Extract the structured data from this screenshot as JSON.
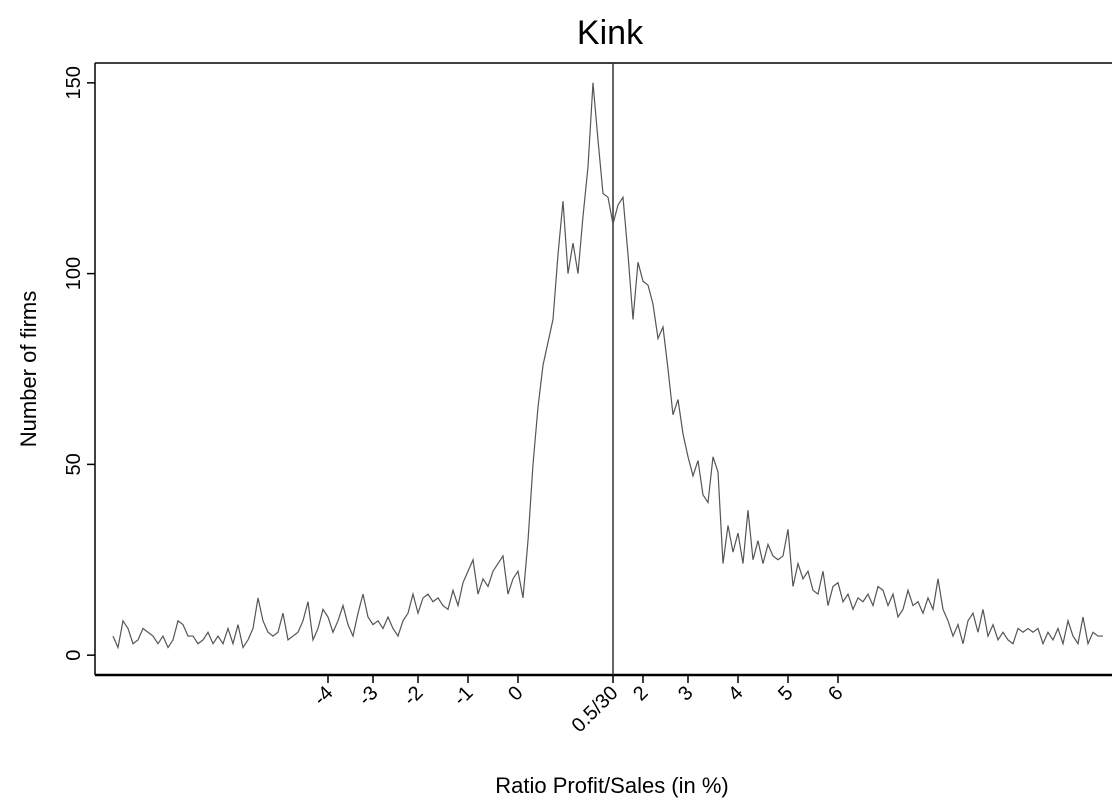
{
  "chart_data": {
    "type": "line",
    "title": "Kink",
    "x_label": "Ratio Profit/Sales (in %)",
    "y_label": "Number of firms",
    "categories": [
      null,
      null,
      null,
      null,
      null,
      null,
      null,
      null,
      null,
      null,
      null,
      null,
      null,
      null,
      null,
      null,
      null,
      null,
      null,
      null,
      null,
      null,
      null,
      null,
      null,
      null,
      null,
      null,
      null,
      null,
      null,
      null,
      null,
      null,
      null,
      null,
      null,
      null,
      null,
      null,
      null,
      null,
      null,
      "-4",
      null,
      null,
      null,
      null,
      null,
      null,
      null,
      null,
      "-3",
      null,
      null,
      null,
      null,
      null,
      null,
      null,
      null,
      "-2",
      null,
      null,
      null,
      null,
      null,
      null,
      null,
      null,
      null,
      "-1",
      null,
      null,
      null,
      null,
      null,
      null,
      null,
      null,
      null,
      "0",
      null,
      null,
      null,
      null,
      null,
      null,
      null,
      null,
      null,
      null,
      null,
      null,
      null,
      null,
      null,
      null,
      null,
      null,
      "0.5/30",
      null,
      null,
      null,
      null,
      null,
      "2",
      null,
      null,
      null,
      null,
      null,
      null,
      null,
      null,
      "3",
      null,
      null,
      null,
      null,
      null,
      null,
      null,
      null,
      null,
      "4",
      null,
      null,
      null,
      null,
      null,
      null,
      null,
      null,
      null,
      "5",
      null,
      null,
      null,
      null,
      null,
      null,
      null,
      null,
      null,
      "6",
      null,
      null,
      null,
      null,
      null,
      null,
      null,
      null,
      null,
      null,
      null,
      null,
      null,
      null,
      null,
      null,
      null,
      null,
      null,
      null,
      null,
      null,
      null,
      null,
      null,
      null,
      null,
      null,
      null,
      null,
      null,
      null,
      null,
      null,
      null,
      null,
      null,
      null,
      null,
      null,
      null,
      null,
      null,
      null,
      null,
      null,
      null,
      null,
      null,
      null,
      null,
      null,
      null
    ],
    "values": [
      5,
      2,
      9,
      7,
      3,
      4,
      7,
      6,
      5,
      3,
      5,
      2,
      4,
      9,
      8,
      5,
      5,
      3,
      4,
      6,
      3,
      5,
      3,
      7,
      3,
      8,
      2,
      4,
      7,
      15,
      9,
      6,
      5,
      6,
      11,
      4,
      5,
      6,
      9,
      14,
      4,
      7,
      12,
      10,
      6,
      9,
      13,
      8,
      5,
      11,
      16,
      10,
      8,
      9,
      7,
      10,
      7,
      5,
      9,
      11,
      16,
      11,
      15,
      16,
      14,
      15,
      13,
      12,
      17,
      13,
      19,
      22,
      25,
      16,
      20,
      18,
      22,
      24,
      26,
      16,
      20,
      22,
      15,
      30,
      50,
      65,
      76,
      82,
      88,
      105,
      119,
      100,
      108,
      100,
      115,
      128,
      150,
      135,
      121,
      120,
      113,
      118,
      120,
      105,
      88,
      103,
      98,
      97,
      92,
      83,
      86,
      75,
      63,
      67,
      58,
      52,
      47,
      51,
      42,
      40,
      52,
      48,
      24,
      34,
      27,
      32,
      24,
      38,
      25,
      30,
      24,
      29,
      26,
      25,
      26,
      33,
      18,
      24,
      20,
      22,
      17,
      16,
      22,
      13,
      18,
      19,
      14,
      16,
      12,
      15,
      14,
      16,
      13,
      18,
      17,
      13,
      16,
      10,
      12,
      17,
      13,
      14,
      11,
      15,
      12,
      20,
      12,
      9,
      5,
      8,
      3,
      9,
      11,
      6,
      12,
      5,
      8,
      4,
      6,
      4,
      3,
      7,
      6,
      7,
      6,
      7,
      3,
      6,
      4,
      7,
      3,
      9,
      5,
      3,
      10,
      3,
      6,
      5,
      5
    ],
    "color": "#555555",
    "vline": "0.5/30",
    "ylim": [
      -5.2,
      155.2
    ],
    "yticks": [
      0,
      50,
      100,
      150
    ]
  }
}
